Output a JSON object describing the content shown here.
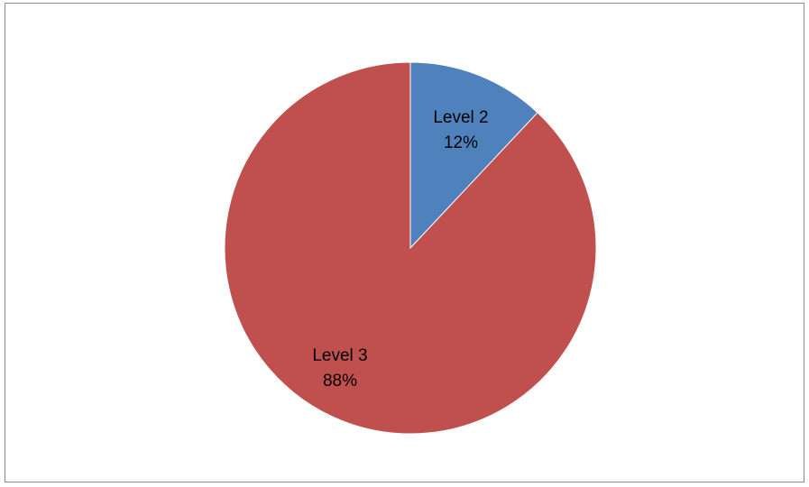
{
  "chart_data": {
    "type": "pie",
    "title": "",
    "legend": "none",
    "slices": [
      {
        "label": "Level 2",
        "value": 12,
        "percent_label": "12%",
        "color": "#4f81bd"
      },
      {
        "label": "Level 3",
        "value": 88,
        "percent_label": "88%",
        "color": "#c0504d"
      }
    ],
    "start_angle": "12 o'clock",
    "direction": "clockwise"
  }
}
